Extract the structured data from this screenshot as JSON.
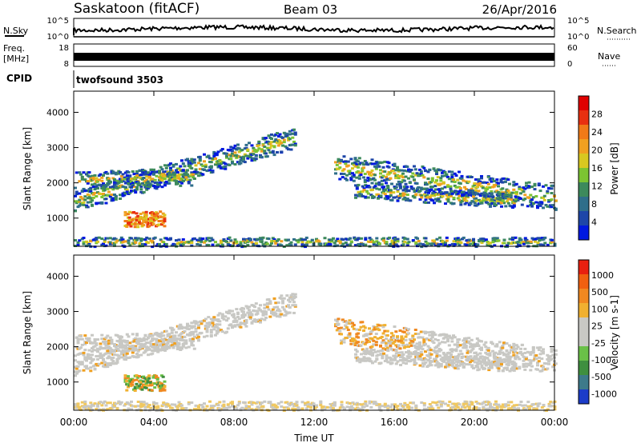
{
  "header": {
    "station": "Saskatoon (fitACF)",
    "beam": "Beam 03",
    "date": "26/Apr/2016"
  },
  "nsky_panel": {
    "left_label": "N.Sky",
    "right_label": "N.Search",
    "left_ticks": [
      "10^5",
      "10^0"
    ],
    "right_ticks": [
      "10^5",
      "10^0"
    ]
  },
  "freq_panel": {
    "left_label_1": "Freq.",
    "left_label_2": "[MHz]",
    "right_label": "Nave",
    "left_ticks": [
      "18",
      "8"
    ],
    "right_ticks": [
      "60",
      "0"
    ]
  },
  "cpid": {
    "label": "CPID",
    "program": "twofsound 3503"
  },
  "chart_data": [
    {
      "type": "heatmap",
      "name": "Power",
      "ylabel": "Slant Range [km]",
      "ylim": [
        200,
        4600
      ],
      "yticks": [
        1000,
        2000,
        3000,
        4000
      ],
      "xlim": [
        0,
        24
      ],
      "colorbar": {
        "label": "Power [dB]",
        "ticks": [
          "4",
          "8",
          "12",
          "16",
          "20",
          "24",
          "28"
        ],
        "colors": [
          "#0018e0",
          "#1e46a8",
          "#2f6e8a",
          "#3d8a5c",
          "#7cc432",
          "#d8c820",
          "#f0a020",
          "#f07a18",
          "#e83010",
          "#e00000"
        ]
      }
    },
    {
      "type": "heatmap",
      "name": "Velocity",
      "ylabel": "Slant Range [km]",
      "ylim": [
        200,
        4600
      ],
      "yticks": [
        1000,
        2000,
        3000,
        4000
      ],
      "xlim": [
        0,
        24
      ],
      "xlabel": "Time UT",
      "xticks": [
        "00:00",
        "04:00",
        "08:00",
        "12:00",
        "16:00",
        "20:00",
        "00:00"
      ],
      "colorbar": {
        "label": "Velocity [m s-1]",
        "ticks": [
          "1000",
          "500",
          "100",
          "25",
          "-25",
          "-100",
          "-500",
          "-1000"
        ],
        "colors": [
          "#1c3cc8",
          "#3d7a8a",
          "#3f8f3f",
          "#6ac048",
          "#c8c8c4",
          "#c8c8c4",
          "#f0b030",
          "#f08820",
          "#f06010",
          "#e82010"
        ]
      }
    }
  ]
}
